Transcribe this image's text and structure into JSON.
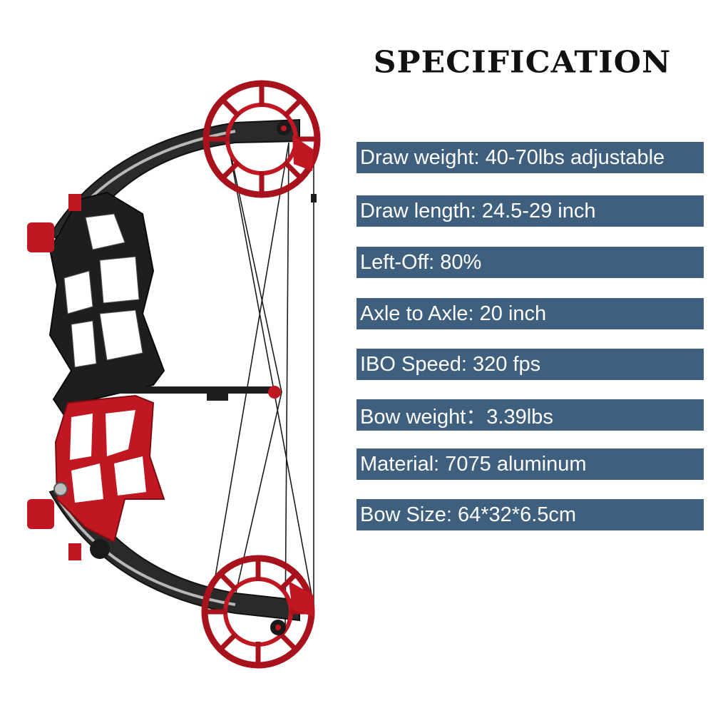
{
  "title": "SPECIFICATION",
  "colors": {
    "row_background": "#3f5f7e",
    "row_text": "#ffffff",
    "title_text": "#111111",
    "bow_red": "#c01722",
    "bow_black": "#1e1e1e",
    "background": "#ffffff"
  },
  "product_image": {
    "icon": "compound-bow-illustration"
  },
  "specs": [
    {
      "label": "Draw weight: 40-70lbs adjustable"
    },
    {
      "label": "Draw length: 24.5-29 inch"
    },
    {
      "label": "Left-Off: 80%"
    },
    {
      "label": " Axle to Axle: 20 inch"
    },
    {
      "label": "IBO Speed: 320 fps"
    },
    {
      "label": "Bow weight：3.39lbs"
    },
    {
      "label": "Material: 7075 aluminum"
    },
    {
      "label": "Bow Size: 64*32*6.5cm"
    }
  ]
}
